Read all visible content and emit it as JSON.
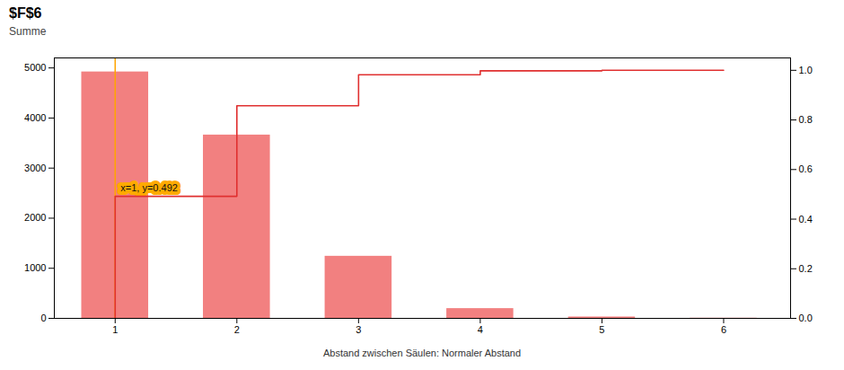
{
  "chart_data": {
    "type": "bar",
    "title": "$F$6",
    "subtitle": "Summe",
    "caption": "Abstand zwischen Säulen:  Normaler Abstand",
    "x": [
      1,
      2,
      3,
      4,
      5,
      6
    ],
    "xlim": [
      0.5,
      6.55
    ],
    "xticks": [
      1,
      2,
      3,
      4,
      5,
      6
    ],
    "ylim": [
      0,
      5200
    ],
    "yticks": [
      0,
      1000,
      2000,
      3000,
      4000,
      5000
    ],
    "y2lim": [
      0,
      1.05
    ],
    "y2ticks": [
      {
        "value": 0,
        "label": "0.0"
      },
      0.2,
      0.4,
      0.6,
      0.8,
      {
        "value": 1.0,
        "label": "1.0"
      }
    ],
    "grid": false,
    "series": [
      {
        "type": "bar",
        "color": "#f28080",
        "values": [
          4920,
          3660,
          1240,
          195,
          28,
          4
        ]
      },
      {
        "type": "line",
        "axis": "y2",
        "color": "#e03030",
        "x": [
          1,
          1,
          2,
          2,
          3,
          3,
          4,
          4,
          5,
          5,
          6,
          6
        ],
        "values": [
          0,
          0.492,
          0.492,
          0.857,
          0.857,
          0.982,
          0.982,
          0.998,
          0.998,
          1.0,
          1.0,
          1.0
        ]
      }
    ],
    "vline": {
      "x": 1.0,
      "color": "#ffa500"
    },
    "annotations": [
      {
        "text": "x=1, y=0.492",
        "x": 1.0,
        "y": 2600,
        "color": "#ffaa00"
      }
    ]
  }
}
